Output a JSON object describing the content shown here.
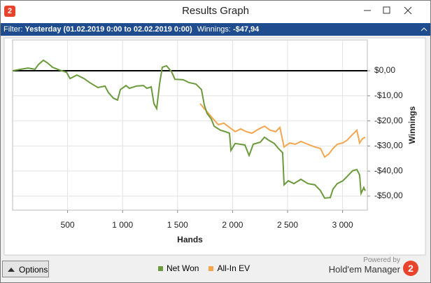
{
  "window": {
    "title": "Results Graph"
  },
  "filter": {
    "label": "Filter:",
    "period": "Yesterday (01.02.2019 0:00 to 02.02.2019 0:00)",
    "winnings_label": "Winnings:",
    "winnings": "-$47,94"
  },
  "chart_data": {
    "type": "line",
    "x_label": "Hands",
    "y_label": "Winnings",
    "xlim": [
      0,
      3225
    ],
    "xticks": [
      500,
      {
        "value": 1000,
        "label": "1 000"
      },
      {
        "value": 1500,
        "label": "1 500"
      },
      {
        "value": 2000,
        "label": "2 000"
      },
      {
        "value": 2500,
        "label": "2 500"
      },
      {
        "value": 3000,
        "label": "3 000"
      }
    ],
    "ylim": [
      -55.6,
      12.3
    ],
    "yticks": [
      {
        "value": 0,
        "label": "$0,00"
      },
      {
        "value": -10,
        "label": "-$10,00"
      },
      {
        "value": -20,
        "label": "-$20,00"
      },
      {
        "value": -30,
        "label": "-$30,00"
      },
      {
        "value": -40,
        "label": "-$40,00"
      },
      {
        "value": -50,
        "label": "-$50,00"
      }
    ],
    "grid": true,
    "zero_line": true,
    "series": [
      {
        "name": "Net Won",
        "color": "#6b9a3c",
        "x": [
          0,
          76,
          140,
          204,
          235,
          280,
          318,
          363,
          426,
          490,
          522,
          585,
          649,
          700,
          776,
          840,
          871,
          916,
          954,
          980,
          1031,
          1062,
          1126,
          1190,
          1221,
          1260,
          1285,
          1310,
          1336,
          1361,
          1399,
          1444,
          1476,
          1552,
          1603,
          1667,
          1717,
          1743,
          1768,
          1807,
          1832,
          1889,
          1934,
          1972,
          1985,
          2023,
          2112,
          2150,
          2188,
          2252,
          2290,
          2328,
          2379,
          2417,
          2455,
          2468,
          2506,
          2557,
          2621,
          2684,
          2748,
          2799,
          2837,
          2888,
          2913,
          2952,
          3002,
          3041,
          3091,
          3130,
          3155,
          3168,
          3193,
          3206
        ],
        "values": [
          0,
          0.6,
          1.1,
          0.6,
          2.5,
          4.2,
          3.1,
          1.4,
          0.3,
          -0.6,
          -3.1,
          -1.7,
          -3.1,
          -4.7,
          -6.7,
          -6.1,
          -8.7,
          -10.9,
          -11.7,
          -7.5,
          -5.9,
          -7.0,
          -6.1,
          -5.9,
          -7.0,
          -6.4,
          -13.1,
          -15.1,
          -5.3,
          1.4,
          2.0,
          -0.3,
          -3.4,
          -3.6,
          -4.7,
          -5.3,
          -7.5,
          -13.7,
          -17.0,
          -19.3,
          -22.1,
          -23.7,
          -24.3,
          -24.9,
          -31.8,
          -29.0,
          -29.6,
          -33.8,
          -29.3,
          -28.5,
          -26.5,
          -27.7,
          -29.0,
          -31.0,
          -32.7,
          -45.5,
          -43.9,
          -45.0,
          -43.3,
          -45.0,
          -45.5,
          -47.8,
          -50.8,
          -50.6,
          -47.2,
          -45.0,
          -43.9,
          -42.2,
          -39.9,
          -39.4,
          -41.6,
          -48.9,
          -46.6,
          -47.9
        ]
      },
      {
        "name": "All-In EV",
        "color": "#f5a54e",
        "x": [
          1705,
          1743,
          1781,
          1826,
          1870,
          1921,
          1972,
          2023,
          2074,
          2125,
          2176,
          2239,
          2290,
          2341,
          2392,
          2430,
          2468,
          2519,
          2570,
          2621,
          2684,
          2748,
          2799,
          2837,
          2875,
          2913,
          2952,
          3002,
          3041,
          3091,
          3130,
          3155,
          3181,
          3206
        ],
        "values": [
          -13.1,
          -15.1,
          -17.0,
          -19.3,
          -21.5,
          -20.9,
          -22.6,
          -24.3,
          -23.2,
          -24.3,
          -24.9,
          -23.2,
          -22.1,
          -23.7,
          -24.3,
          -22.6,
          -30.4,
          -28.8,
          -29.3,
          -28.2,
          -29.3,
          -30.4,
          -31.0,
          -34.4,
          -33.2,
          -31.0,
          -29.3,
          -28.8,
          -27.7,
          -25.4,
          -23.7,
          -28.8,
          -27.1,
          -26.5
        ]
      }
    ]
  },
  "footer": {
    "button": "Options",
    "powered_by": "Powered by",
    "brand": "Hold'em Manager"
  }
}
